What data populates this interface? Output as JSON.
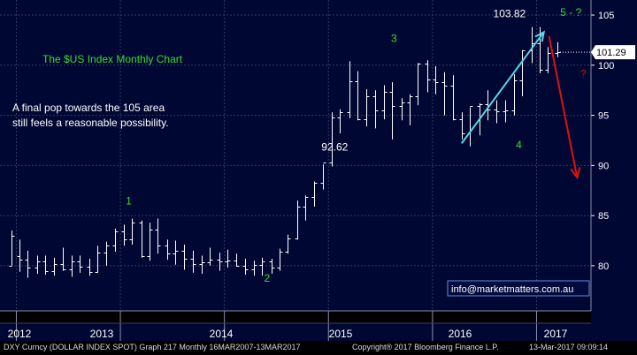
{
  "chart_data": {
    "type": "candlestick",
    "title": "The $US Index Monthly Chart",
    "annotation": "A final pop towards the 105 area still feels a reasonable possibility.",
    "annotation_lines": [
      "A final pop towards the 105 area",
      "still feels a reasonable possibility."
    ],
    "y_ticks": [
      80,
      85,
      90,
      95,
      100,
      105
    ],
    "ylim": [
      75.5,
      106.5
    ],
    "year_labels": [
      "2012",
      "2013",
      "2014",
      "2015",
      "2016",
      "2017"
    ],
    "last_price": "101.29",
    "last_value": 101.29,
    "wave_labels": [
      {
        "text": "1",
        "x": 2013.05,
        "y": 86.1,
        "color": "green"
      },
      {
        "text": "2",
        "x": 2014.38,
        "y": 78.4,
        "color": "green"
      },
      {
        "text": "3",
        "x": 2015.6,
        "y": 102.3,
        "color": "green"
      },
      {
        "text": "4",
        "x": 2016.8,
        "y": 91.7,
        "color": "green"
      },
      {
        "text": "5 - ?",
        "x": 2017.3,
        "y": 104.9,
        "color": "green"
      },
      {
        "text": "?",
        "x": 2017.42,
        "y": 98.8,
        "color": "red"
      }
    ],
    "value_labels": [
      {
        "text": "103.82",
        "x": 2017.05,
        "y": 104.8
      },
      {
        "text": "92.62",
        "x": 2015.37,
        "y": 91.5
      }
    ],
    "watermark": "info@marketmatters.com.au",
    "bars": [
      {
        "x": 2011.92,
        "o": 80.0,
        "h": 83.5,
        "l": 80.0,
        "c": 83.0
      },
      {
        "x": 2012.0,
        "o": 81.0,
        "h": 82.6,
        "l": 79.4,
        "c": 80.6
      },
      {
        "x": 2012.08,
        "o": 80.6,
        "h": 81.5,
        "l": 78.8,
        "c": 79.8
      },
      {
        "x": 2012.17,
        "o": 79.8,
        "h": 81.0,
        "l": 79.2,
        "c": 80.4
      },
      {
        "x": 2012.25,
        "o": 80.4,
        "h": 81.0,
        "l": 79.1,
        "c": 79.5
      },
      {
        "x": 2012.33,
        "o": 79.5,
        "h": 80.8,
        "l": 79.0,
        "c": 80.2
      },
      {
        "x": 2012.42,
        "o": 80.2,
        "h": 81.8,
        "l": 79.5,
        "c": 79.6
      },
      {
        "x": 2012.5,
        "o": 79.6,
        "h": 81.0,
        "l": 78.9,
        "c": 80.4
      },
      {
        "x": 2012.58,
        "o": 80.4,
        "h": 81.0,
        "l": 79.3,
        "c": 79.9
      },
      {
        "x": 2012.67,
        "o": 79.9,
        "h": 80.7,
        "l": 79.0,
        "c": 79.4
      },
      {
        "x": 2012.75,
        "o": 79.4,
        "h": 82.0,
        "l": 79.3,
        "c": 81.3
      },
      {
        "x": 2012.83,
        "o": 81.3,
        "h": 82.4,
        "l": 80.0,
        "c": 82.0
      },
      {
        "x": 2012.92,
        "o": 82.0,
        "h": 83.7,
        "l": 81.4,
        "c": 83.4
      },
      {
        "x": 2013.0,
        "o": 83.4,
        "h": 84.1,
        "l": 82.0,
        "c": 82.6
      },
      {
        "x": 2013.08,
        "o": 82.6,
        "h": 84.7,
        "l": 82.1,
        "c": 84.3
      },
      {
        "x": 2013.17,
        "o": 84.3,
        "h": 84.5,
        "l": 80.8,
        "c": 81.0
      },
      {
        "x": 2013.25,
        "o": 81.0,
        "h": 84.3,
        "l": 80.5,
        "c": 83.6
      },
      {
        "x": 2013.33,
        "o": 83.6,
        "h": 84.7,
        "l": 81.2,
        "c": 82.0
      },
      {
        "x": 2013.42,
        "o": 82.0,
        "h": 82.6,
        "l": 80.6,
        "c": 81.2
      },
      {
        "x": 2013.5,
        "o": 81.2,
        "h": 82.5,
        "l": 80.1,
        "c": 81.5
      },
      {
        "x": 2013.58,
        "o": 81.5,
        "h": 82.1,
        "l": 79.6,
        "c": 80.7
      },
      {
        "x": 2013.67,
        "o": 80.7,
        "h": 81.5,
        "l": 79.3,
        "c": 80.2
      },
      {
        "x": 2013.75,
        "o": 80.2,
        "h": 81.0,
        "l": 79.2,
        "c": 80.3
      },
      {
        "x": 2013.83,
        "o": 80.3,
        "h": 81.8,
        "l": 80.0,
        "c": 80.6
      },
      {
        "x": 2013.92,
        "o": 80.6,
        "h": 81.3,
        "l": 79.5,
        "c": 80.4
      },
      {
        "x": 2014.0,
        "o": 80.4,
        "h": 81.6,
        "l": 79.8,
        "c": 80.5
      },
      {
        "x": 2014.08,
        "o": 80.5,
        "h": 81.2,
        "l": 79.9,
        "c": 80.0
      },
      {
        "x": 2014.17,
        "o": 80.0,
        "h": 80.7,
        "l": 79.1,
        "c": 79.6
      },
      {
        "x": 2014.25,
        "o": 79.6,
        "h": 80.5,
        "l": 79.0,
        "c": 80.1
      },
      {
        "x": 2014.33,
        "o": 80.1,
        "h": 80.8,
        "l": 79.0,
        "c": 80.4
      },
      {
        "x": 2014.42,
        "o": 80.4,
        "h": 80.7,
        "l": 79.2,
        "c": 79.8
      },
      {
        "x": 2014.5,
        "o": 79.8,
        "h": 81.7,
        "l": 79.5,
        "c": 81.4
      },
      {
        "x": 2014.58,
        "o": 81.4,
        "h": 83.1,
        "l": 81.2,
        "c": 82.7
      },
      {
        "x": 2014.67,
        "o": 82.7,
        "h": 86.5,
        "l": 82.6,
        "c": 85.9
      },
      {
        "x": 2014.75,
        "o": 85.9,
        "h": 87.0,
        "l": 84.5,
        "c": 86.9
      },
      {
        "x": 2014.83,
        "o": 86.9,
        "h": 88.4,
        "l": 85.9,
        "c": 88.3
      },
      {
        "x": 2014.92,
        "o": 88.3,
        "h": 90.1,
        "l": 87.6,
        "c": 90.3
      },
      {
        "x": 2015.0,
        "o": 90.3,
        "h": 95.3,
        "l": 89.9,
        "c": 94.8
      },
      {
        "x": 2015.08,
        "o": 94.8,
        "h": 95.6,
        "l": 93.2,
        "c": 95.3
      },
      {
        "x": 2015.17,
        "o": 95.3,
        "h": 100.4,
        "l": 94.7,
        "c": 98.4
      },
      {
        "x": 2015.25,
        "o": 98.4,
        "h": 99.4,
        "l": 94.5,
        "c": 94.6
      },
      {
        "x": 2015.33,
        "o": 94.6,
        "h": 97.6,
        "l": 93.9,
        "c": 96.9
      },
      {
        "x": 2015.42,
        "o": 96.9,
        "h": 97.5,
        "l": 93.7,
        "c": 95.5
      },
      {
        "x": 2015.5,
        "o": 95.5,
        "h": 98.0,
        "l": 94.6,
        "c": 97.3
      },
      {
        "x": 2015.58,
        "o": 97.3,
        "h": 98.3,
        "l": 92.6,
        "c": 95.9
      },
      {
        "x": 2015.67,
        "o": 95.9,
        "h": 96.7,
        "l": 94.5,
        "c": 96.3
      },
      {
        "x": 2015.75,
        "o": 96.3,
        "h": 97.1,
        "l": 94.0,
        "c": 96.9
      },
      {
        "x": 2015.83,
        "o": 96.9,
        "h": 100.2,
        "l": 96.0,
        "c": 100.2
      },
      {
        "x": 2015.92,
        "o": 100.2,
        "h": 100.5,
        "l": 97.3,
        "c": 98.6
      },
      {
        "x": 2016.0,
        "o": 98.6,
        "h": 99.9,
        "l": 97.1,
        "c": 98.3
      },
      {
        "x": 2016.08,
        "o": 98.3,
        "h": 99.3,
        "l": 95.0,
        "c": 98.0
      },
      {
        "x": 2016.17,
        "o": 98.0,
        "h": 99.0,
        "l": 94.5,
        "c": 94.6
      },
      {
        "x": 2016.25,
        "o": 94.6,
        "h": 95.3,
        "l": 92.6,
        "c": 93.2
      },
      {
        "x": 2016.33,
        "o": 93.2,
        "h": 95.8,
        "l": 91.9,
        "c": 95.9
      },
      {
        "x": 2016.42,
        "o": 95.9,
        "h": 96.2,
        "l": 93.0,
        "c": 96.1
      },
      {
        "x": 2016.5,
        "o": 96.1,
        "h": 97.5,
        "l": 94.5,
        "c": 95.6
      },
      {
        "x": 2016.58,
        "o": 95.6,
        "h": 96.5,
        "l": 94.2,
        "c": 95.4
      },
      {
        "x": 2016.67,
        "o": 95.4,
        "h": 96.5,
        "l": 94.3,
        "c": 95.5
      },
      {
        "x": 2016.75,
        "o": 95.5,
        "h": 99.1,
        "l": 95.0,
        "c": 98.5
      },
      {
        "x": 2016.83,
        "o": 98.5,
        "h": 101.5,
        "l": 96.9,
        "c": 101.5
      },
      {
        "x": 2016.92,
        "o": 101.5,
        "h": 103.8,
        "l": 100.2,
        "c": 102.2
      },
      {
        "x": 2017.0,
        "o": 102.2,
        "h": 103.8,
        "l": 99.2,
        "c": 99.5
      },
      {
        "x": 2017.08,
        "o": 99.5,
        "h": 101.8,
        "l": 99.2,
        "c": 101.2
      },
      {
        "x": 2017.17,
        "o": 101.2,
        "h": 102.3,
        "l": 100.8,
        "c": 101.3
      }
    ]
  },
  "footer": {
    "left": "DXY Curncy (DOLLAR INDEX SPOT) Graph 217  Monthly 16MAR2007-13MAR2017",
    "center": "Copyright® 2017 Bloomberg Finance L.P.",
    "right": "13-Mar-2017 09:09:14"
  },
  "colors": {
    "background": "#000733",
    "plot_background": "#000733",
    "grid": "#33395c",
    "bars": "#ffffff",
    "text": "#ffffff",
    "green_text": "#33dd33",
    "cyan_arrow": "#5ad4e6",
    "red_arrow": "#dd1111",
    "red_text": "#cc1111",
    "last_price_box": "#ffffff",
    "axis_text": "#ffffff"
  }
}
